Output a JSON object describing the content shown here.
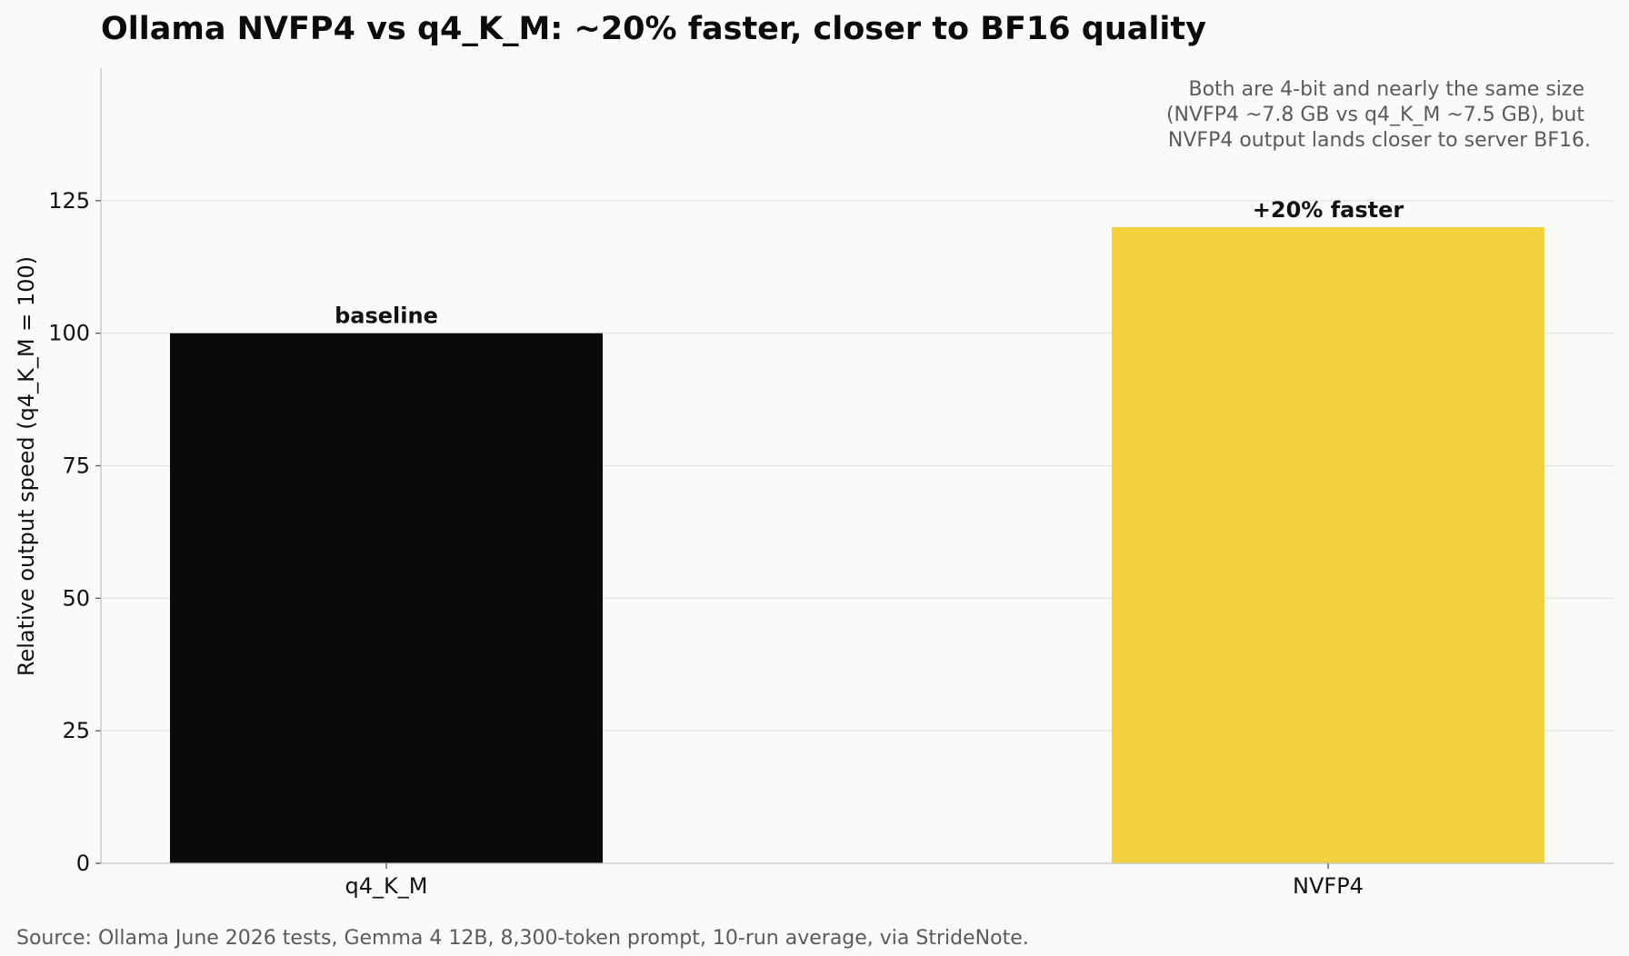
{
  "chart_data": {
    "type": "bar",
    "title": "Ollama NVFP4 vs q4_K_M: ~20% faster, closer to BF16 quality",
    "ylabel": "Relative output speed (q4_K_M = 100)",
    "xlabel": "",
    "categories": [
      "q4_K_M",
      "NVFP4"
    ],
    "values": [
      100,
      120
    ],
    "bar_labels": [
      "baseline",
      "+20% faster"
    ],
    "colors": [
      "#0a0a0a",
      "#f3d03e"
    ],
    "ylim": [
      0,
      150
    ],
    "yticks": [
      0,
      25,
      50,
      75,
      100,
      125
    ],
    "grid": "horizontal",
    "annotation": [
      "Both are 4-bit and nearly the same size",
      "(NVFP4 ~7.8 GB vs q4_K_M ~7.5 GB), but",
      "NVFP4 output lands closer to server BF16."
    ],
    "source": "Source: Ollama June 2026 tests, Gemma 4 12B, 8,300-token prompt, 10-run average, via StrideNote."
  }
}
